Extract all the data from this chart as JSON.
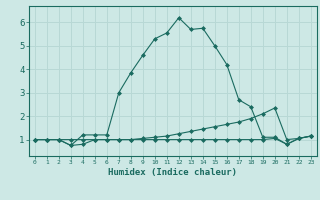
{
  "xlabel": "Humidex (Indice chaleur)",
  "bg_color": "#cde8e5",
  "grid_color": "#b8d8d5",
  "line_color": "#1a6b60",
  "xlim": [
    -0.5,
    23.5
  ],
  "ylim": [
    0.3,
    6.7
  ],
  "xticks": [
    0,
    1,
    2,
    3,
    4,
    5,
    6,
    7,
    8,
    9,
    10,
    11,
    12,
    13,
    14,
    15,
    16,
    17,
    18,
    19,
    20,
    21,
    22,
    23
  ],
  "yticks": [
    1,
    2,
    3,
    4,
    5,
    6
  ],
  "line1_x": [
    0,
    1,
    2,
    3,
    4,
    5,
    6,
    7,
    8,
    9,
    10,
    11,
    12,
    13,
    14,
    15,
    16,
    17,
    18,
    19,
    20,
    21,
    22,
    23
  ],
  "line1_y": [
    1.0,
    1.0,
    1.0,
    0.75,
    1.2,
    1.2,
    1.2,
    3.0,
    3.85,
    4.6,
    5.3,
    5.55,
    6.2,
    5.7,
    5.75,
    5.0,
    4.2,
    2.7,
    2.4,
    1.1,
    1.1,
    0.8,
    1.05,
    1.15
  ],
  "line2_x": [
    0,
    1,
    2,
    3,
    4,
    5,
    6,
    7,
    8,
    9,
    10,
    11,
    12,
    13,
    14,
    15,
    16,
    17,
    18,
    19,
    20,
    21,
    22,
    23
  ],
  "line2_y": [
    1.0,
    1.0,
    1.0,
    1.0,
    1.0,
    1.0,
    1.0,
    1.0,
    1.0,
    1.05,
    1.1,
    1.15,
    1.25,
    1.35,
    1.45,
    1.55,
    1.65,
    1.75,
    1.9,
    2.1,
    2.35,
    1.0,
    1.05,
    1.15
  ],
  "line3_x": [
    0,
    1,
    2,
    3,
    4,
    5,
    6,
    7,
    8,
    9,
    10,
    11,
    12,
    13,
    14,
    15,
    16,
    17,
    18,
    19,
    20,
    21,
    22,
    23
  ],
  "line3_y": [
    1.0,
    1.0,
    1.0,
    0.75,
    0.8,
    1.0,
    1.0,
    1.0,
    1.0,
    1.0,
    1.0,
    1.0,
    1.0,
    1.0,
    1.0,
    1.0,
    1.0,
    1.0,
    1.0,
    1.0,
    1.05,
    0.8,
    1.05,
    1.15
  ]
}
